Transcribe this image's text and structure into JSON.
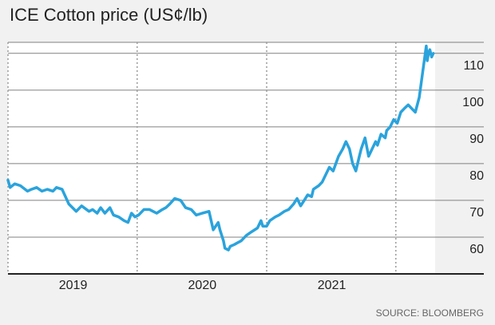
{
  "chart_data": {
    "type": "line",
    "title": "ICE Cotton price (US¢/lb)",
    "source": "SOURCE: BLOOMBERG",
    "ylim": [
      50,
      113
    ],
    "xlim": [
      "2018-07-01",
      "2021-10-20"
    ],
    "y_ticks": [
      60,
      70,
      80,
      90,
      100,
      110
    ],
    "x_tick_labels": [
      {
        "label": "2019",
        "date": "2019-01-01"
      },
      {
        "label": "2020",
        "date": "2020-01-01"
      },
      {
        "label": "2021",
        "date": "2021-01-01"
      }
    ],
    "year_dividers": [
      "2019-07-01",
      "2020-07-01",
      "2021-07-01"
    ],
    "grid": true,
    "plot_background": "#ffffff",
    "colors": {
      "line": "#2aa3dc",
      "grid": "#808080",
      "divider": "#9a9a9a",
      "text": "#222222",
      "source": "#666666",
      "page_background": "#f1f1f1"
    },
    "series": [
      {
        "x": [
          "2018-07-01",
          "2018-07-07",
          "2018-07-20",
          "2018-08-05",
          "2018-08-25",
          "2018-09-05",
          "2018-09-20",
          "2018-10-05",
          "2018-10-20",
          "2018-11-05",
          "2018-11-15",
          "2018-12-01",
          "2018-12-20",
          "2019-01-10",
          "2019-01-25",
          "2019-02-15",
          "2019-02-25",
          "2019-03-10",
          "2019-03-20",
          "2019-04-01",
          "2019-04-15",
          "2019-04-25",
          "2019-05-10",
          "2019-05-25",
          "2019-06-05",
          "2019-06-15",
          "2019-06-25",
          "2019-07-05",
          "2019-07-20",
          "2019-08-05",
          "2019-08-15",
          "2019-08-25",
          "2019-09-10",
          "2019-09-20",
          "2019-10-01",
          "2019-10-15",
          "2019-11-01",
          "2019-11-15",
          "2019-12-01",
          "2019-12-15",
          "2020-01-01",
          "2020-01-20",
          "2020-02-01",
          "2020-02-15",
          "2020-02-20",
          "2020-03-01",
          "2020-03-05",
          "2020-03-15",
          "2020-03-20",
          "2020-04-01",
          "2020-04-10",
          "2020-04-20",
          "2020-05-05",
          "2020-05-20",
          "2020-06-05",
          "2020-06-15",
          "2020-06-20",
          "2020-07-01",
          "2020-07-10",
          "2020-07-25",
          "2020-08-05",
          "2020-08-20",
          "2020-09-01",
          "2020-09-15",
          "2020-09-25",
          "2020-10-05",
          "2020-10-15",
          "2020-10-25",
          "2020-11-05",
          "2020-11-10",
          "2020-11-25",
          "2020-12-05",
          "2020-12-15",
          "2020-12-25",
          "2021-01-05",
          "2021-01-20",
          "2021-02-01",
          "2021-02-10",
          "2021-02-20",
          "2021-03-01",
          "2021-03-10",
          "2021-03-20",
          "2021-03-25",
          "2021-04-05",
          "2021-04-15",
          "2021-04-25",
          "2021-05-05",
          "2021-05-10",
          "2021-05-20",
          "2021-06-01",
          "2021-06-05",
          "2021-06-15",
          "2021-06-25",
          "2021-07-05",
          "2021-07-15",
          "2021-07-25",
          "2021-08-05",
          "2021-08-15",
          "2021-08-25",
          "2021-09-05",
          "2021-09-15",
          "2021-09-25",
          "2021-09-28",
          "2021-10-01",
          "2021-10-05",
          "2021-10-10",
          "2021-10-15"
        ],
        "y": [
          75.5,
          73.5,
          74.5,
          74,
          72.5,
          73,
          73.5,
          72.5,
          73,
          72.5,
          73.5,
          73,
          69,
          67,
          68.5,
          67,
          67.5,
          66.5,
          68,
          66.5,
          68,
          66,
          65.5,
          64.5,
          64,
          66.5,
          65.5,
          66,
          67.5,
          67.5,
          67,
          66.5,
          67.5,
          68,
          69,
          70.5,
          70,
          68,
          67.5,
          66,
          66.5,
          67,
          62,
          64,
          62,
          59,
          57,
          56.5,
          57.5,
          58,
          58.5,
          59,
          60.5,
          61.5,
          62.5,
          64.5,
          63,
          63,
          64.5,
          65.5,
          66,
          67,
          67.5,
          69,
          70.5,
          68.5,
          70,
          71.5,
          71,
          73,
          74,
          75,
          77,
          79,
          78,
          82,
          84,
          86,
          84,
          80,
          78,
          82,
          84,
          87,
          82,
          84,
          86,
          85,
          88,
          87,
          89,
          90,
          92,
          91,
          94,
          95,
          96,
          95,
          94,
          98,
          105,
          112,
          108,
          110,
          111,
          109,
          110
        ]
      }
    ]
  }
}
